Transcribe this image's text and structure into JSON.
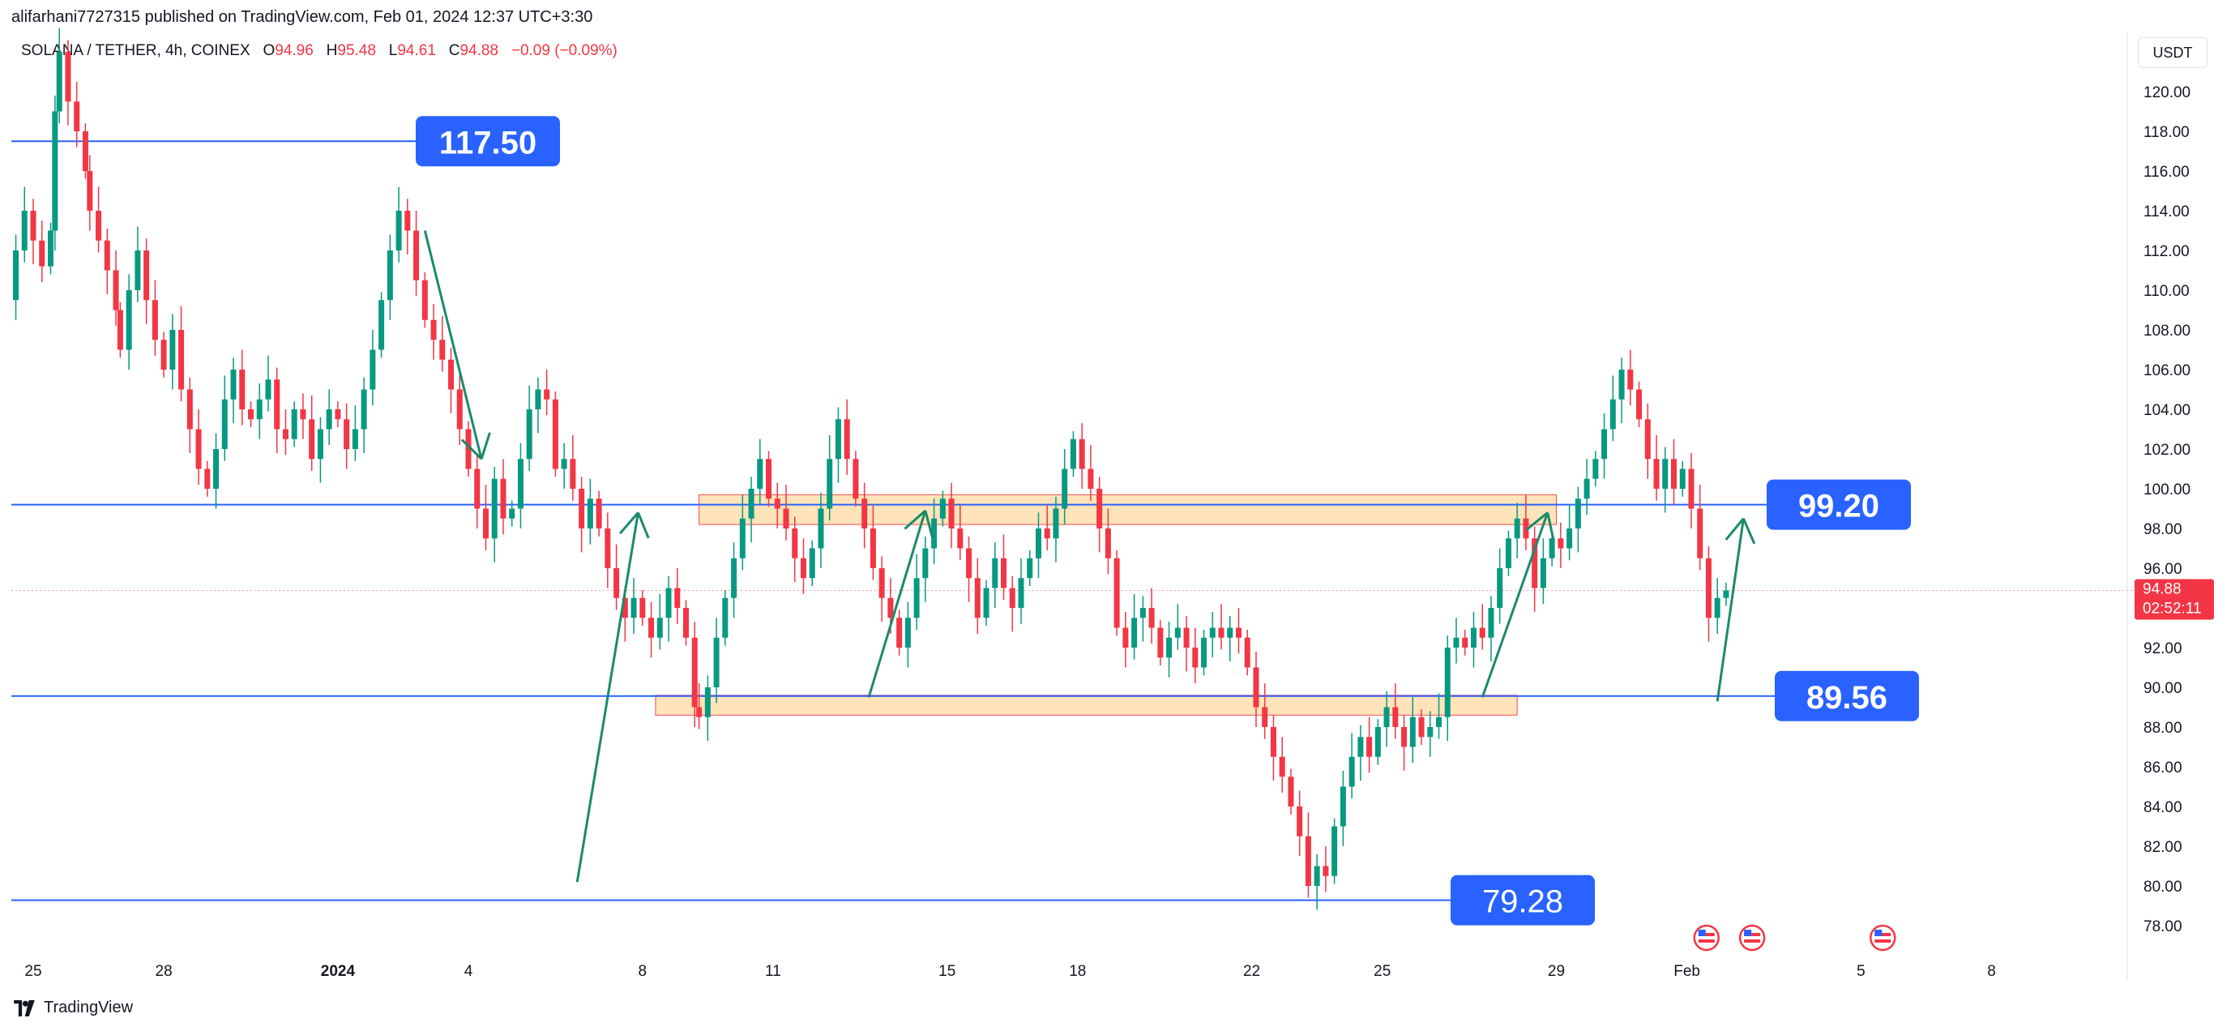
{
  "header": {
    "published": "alifarhani7727315 published on TradingView.com, Feb 01, 2024 12:37 UTC+3:30"
  },
  "symbol": {
    "name": "SOLANA / TETHER, 4h, COINEX",
    "o_label": "O",
    "o_value": "94.96",
    "h_label": "H",
    "h_value": "95.48",
    "l_label": "L",
    "l_value": "94.61",
    "c_label": "C",
    "c_value": "94.88",
    "change": "−0.09 (−0.09%)"
  },
  "currency_label": "USDT",
  "footer": {
    "brand": "TradingView",
    "logo_icon": "tradingview-logo-icon"
  },
  "colors": {
    "up": "#089981",
    "down": "#f23645",
    "level": "#2962ff",
    "zone_fill": "#ffe0b2",
    "zone_border": "#f23645",
    "arrow": "#1b8a6b"
  },
  "chart_data": {
    "type": "candlestick",
    "ylim": [
      77,
      122
    ],
    "y_ticks": [
      "78.00",
      "80.00",
      "82.00",
      "84.00",
      "86.00",
      "88.00",
      "90.00",
      "92.00",
      "94.00",
      "96.00",
      "98.00",
      "100.00",
      "102.00",
      "104.00",
      "106.00",
      "108.00",
      "110.00",
      "112.00",
      "114.00",
      "116.00",
      "118.00",
      "120.00"
    ],
    "x_ticks": [
      {
        "label": "25",
        "day": 0
      },
      {
        "label": "28",
        "day": 3
      },
      {
        "label": "2024",
        "day": 7
      },
      {
        "label": "4",
        "day": 10
      },
      {
        "label": "8",
        "day": 14
      },
      {
        "label": "11",
        "day": 17
      },
      {
        "label": "15",
        "day": 21
      },
      {
        "label": "18",
        "day": 24
      },
      {
        "label": "22",
        "day": 28
      },
      {
        "label": "25",
        "day": 31
      },
      {
        "label": "29",
        "day": 35
      },
      {
        "label": "Feb",
        "day": 38
      },
      {
        "label": "5",
        "day": 42
      },
      {
        "label": "8",
        "day": 45
      }
    ],
    "price_label": {
      "price": "94.88",
      "countdown": "02:52:11",
      "value": 94.88
    },
    "levels": [
      {
        "label": "117.50",
        "value": 117.5
      },
      {
        "label": "99.20",
        "value": 99.2
      },
      {
        "label": "89.56",
        "value": 89.56
      },
      {
        "label": "79.28",
        "value": 79.28
      }
    ],
    "zones": [
      {
        "start_day": 15.3,
        "end_day": 35.0,
        "low": 98.2,
        "high": 99.7
      },
      {
        "start_day": 14.3,
        "end_day": 34.1,
        "low": 88.6,
        "high": 89.6
      }
    ],
    "arrows": [
      {
        "from": [
          9.0,
          113.0
        ],
        "to": [
          10.3,
          101.5
        ]
      },
      {
        "from": [
          12.5,
          80.2
        ],
        "to": [
          13.9,
          98.8
        ]
      },
      {
        "from": [
          19.2,
          89.5
        ],
        "to": [
          20.5,
          98.9
        ]
      },
      {
        "from": [
          33.3,
          89.5
        ],
        "to": [
          34.8,
          98.8
        ]
      },
      {
        "from": [
          38.7,
          89.3
        ],
        "to": [
          39.3,
          98.5
        ]
      }
    ],
    "events": [
      {
        "day": 38.45
      },
      {
        "day": 39.5
      },
      {
        "day": 42.5
      }
    ],
    "close_path": [
      [
        -0.6,
        109.5
      ],
      [
        -0.4,
        112.0
      ],
      [
        -0.2,
        114.0
      ],
      [
        0.0,
        112.5
      ],
      [
        0.2,
        111.2
      ],
      [
        0.4,
        113.0
      ],
      [
        0.5,
        119.0
      ],
      [
        0.6,
        122.0
      ],
      [
        0.8,
        119.5
      ],
      [
        1.0,
        118.0
      ],
      [
        1.2,
        116.0
      ],
      [
        1.3,
        114.0
      ],
      [
        1.5,
        112.5
      ],
      [
        1.7,
        111.0
      ],
      [
        1.9,
        109.0
      ],
      [
        2.0,
        107.0
      ],
      [
        2.2,
        110.0
      ],
      [
        2.4,
        112.0
      ],
      [
        2.6,
        109.5
      ],
      [
        2.8,
        107.5
      ],
      [
        3.0,
        106.0
      ],
      [
        3.2,
        108.0
      ],
      [
        3.4,
        105.0
      ],
      [
        3.6,
        103.0
      ],
      [
        3.8,
        101.0
      ],
      [
        4.0,
        100.0
      ],
      [
        4.2,
        102.0
      ],
      [
        4.4,
        104.5
      ],
      [
        4.6,
        106.0
      ],
      [
        4.8,
        104.0
      ],
      [
        5.0,
        103.5
      ],
      [
        5.2,
        104.5
      ],
      [
        5.4,
        105.5
      ],
      [
        5.6,
        103.0
      ],
      [
        5.8,
        102.5
      ],
      [
        6.0,
        104.0
      ],
      [
        6.2,
        103.5
      ],
      [
        6.4,
        101.5
      ],
      [
        6.6,
        103.0
      ],
      [
        6.8,
        104.0
      ],
      [
        7.0,
        103.5
      ],
      [
        7.2,
        102.0
      ],
      [
        7.4,
        103.0
      ],
      [
        7.6,
        105.0
      ],
      [
        7.8,
        107.0
      ],
      [
        8.0,
        109.5
      ],
      [
        8.2,
        112.0
      ],
      [
        8.4,
        114.0
      ],
      [
        8.6,
        113.0
      ],
      [
        8.8,
        110.5
      ],
      [
        9.0,
        108.5
      ],
      [
        9.2,
        107.5
      ],
      [
        9.4,
        106.5
      ],
      [
        9.6,
        105.0
      ],
      [
        9.8,
        103.0
      ],
      [
        10.0,
        101.0
      ],
      [
        10.2,
        99.0
      ],
      [
        10.4,
        97.5
      ],
      [
        10.6,
        100.5
      ],
      [
        10.8,
        98.5
      ],
      [
        11.0,
        99.0
      ],
      [
        11.2,
        101.5
      ],
      [
        11.4,
        104.0
      ],
      [
        11.6,
        105.0
      ],
      [
        11.8,
        104.5
      ],
      [
        12.0,
        101.0
      ],
      [
        12.2,
        101.5
      ],
      [
        12.4,
        100.0
      ],
      [
        12.6,
        98.0
      ],
      [
        12.8,
        99.5
      ],
      [
        13.0,
        98.0
      ],
      [
        13.2,
        96.0
      ],
      [
        13.4,
        94.5
      ],
      [
        13.6,
        93.5
      ],
      [
        13.8,
        94.5
      ],
      [
        14.0,
        93.5
      ],
      [
        14.2,
        92.5
      ],
      [
        14.4,
        93.5
      ],
      [
        14.6,
        95.0
      ],
      [
        14.8,
        94.0
      ],
      [
        15.0,
        92.5
      ],
      [
        15.2,
        89.0
      ],
      [
        15.3,
        88.5
      ],
      [
        15.5,
        90.0
      ],
      [
        15.7,
        92.5
      ],
      [
        15.9,
        94.5
      ],
      [
        16.1,
        96.5
      ],
      [
        16.3,
        98.5
      ],
      [
        16.5,
        100.0
      ],
      [
        16.7,
        101.5
      ],
      [
        16.9,
        99.5
      ],
      [
        17.1,
        99.0
      ],
      [
        17.3,
        98.0
      ],
      [
        17.5,
        96.5
      ],
      [
        17.7,
        95.5
      ],
      [
        17.9,
        97.0
      ],
      [
        18.1,
        99.0
      ],
      [
        18.3,
        101.5
      ],
      [
        18.5,
        103.5
      ],
      [
        18.7,
        101.5
      ],
      [
        18.9,
        99.5
      ],
      [
        19.1,
        98.0
      ],
      [
        19.3,
        96.0
      ],
      [
        19.5,
        94.5
      ],
      [
        19.7,
        93.5
      ],
      [
        19.9,
        92.0
      ],
      [
        20.1,
        93.5
      ],
      [
        20.3,
        95.5
      ],
      [
        20.5,
        97.0
      ],
      [
        20.7,
        98.5
      ],
      [
        20.9,
        99.5
      ],
      [
        21.1,
        98.0
      ],
      [
        21.3,
        97.0
      ],
      [
        21.5,
        95.5
      ],
      [
        21.7,
        93.5
      ],
      [
        21.9,
        95.0
      ],
      [
        22.1,
        96.5
      ],
      [
        22.3,
        95.0
      ],
      [
        22.5,
        94.0
      ],
      [
        22.7,
        95.5
      ],
      [
        22.9,
        96.5
      ],
      [
        23.1,
        98.0
      ],
      [
        23.3,
        97.5
      ],
      [
        23.5,
        99.0
      ],
      [
        23.7,
        101.0
      ],
      [
        23.9,
        102.5
      ],
      [
        24.1,
        101.0
      ],
      [
        24.3,
        100.0
      ],
      [
        24.5,
        98.0
      ],
      [
        24.7,
        96.5
      ],
      [
        24.9,
        93.0
      ],
      [
        25.1,
        92.0
      ],
      [
        25.3,
        93.5
      ],
      [
        25.5,
        94.0
      ],
      [
        25.7,
        93.0
      ],
      [
        25.9,
        91.5
      ],
      [
        26.1,
        92.5
      ],
      [
        26.3,
        93.0
      ],
      [
        26.5,
        92.0
      ],
      [
        26.7,
        91.0
      ],
      [
        26.9,
        92.5
      ],
      [
        27.1,
        93.0
      ],
      [
        27.3,
        92.5
      ],
      [
        27.5,
        93.0
      ],
      [
        27.7,
        92.5
      ],
      [
        27.9,
        91.0
      ],
      [
        28.1,
        89.0
      ],
      [
        28.3,
        88.0
      ],
      [
        28.5,
        86.5
      ],
      [
        28.7,
        85.5
      ],
      [
        28.9,
        84.0
      ],
      [
        29.1,
        82.5
      ],
      [
        29.3,
        80.0
      ],
      [
        29.5,
        81.0
      ],
      [
        29.7,
        80.5
      ],
      [
        29.9,
        83.0
      ],
      [
        30.1,
        85.0
      ],
      [
        30.3,
        86.5
      ],
      [
        30.5,
        87.5
      ],
      [
        30.7,
        86.5
      ],
      [
        30.9,
        88.0
      ],
      [
        31.1,
        89.0
      ],
      [
        31.3,
        88.0
      ],
      [
        31.5,
        87.0
      ],
      [
        31.7,
        88.5
      ],
      [
        31.9,
        87.5
      ],
      [
        32.1,
        88.0
      ],
      [
        32.3,
        88.5
      ],
      [
        32.5,
        92.0
      ],
      [
        32.7,
        92.5
      ],
      [
        32.9,
        92.0
      ],
      [
        33.1,
        93.0
      ],
      [
        33.3,
        92.5
      ],
      [
        33.5,
        94.0
      ],
      [
        33.7,
        96.0
      ],
      [
        33.9,
        97.5
      ],
      [
        34.1,
        98.5
      ],
      [
        34.3,
        97.5
      ],
      [
        34.5,
        95.0
      ],
      [
        34.7,
        96.5
      ],
      [
        34.9,
        97.5
      ],
      [
        35.1,
        97.0
      ],
      [
        35.3,
        98.0
      ],
      [
        35.5,
        99.5
      ],
      [
        35.7,
        100.5
      ],
      [
        35.9,
        101.5
      ],
      [
        36.1,
        103.0
      ],
      [
        36.3,
        104.5
      ],
      [
        36.5,
        106.0
      ],
      [
        36.7,
        105.0
      ],
      [
        36.9,
        103.5
      ],
      [
        37.1,
        101.5
      ],
      [
        37.3,
        100.0
      ],
      [
        37.5,
        101.5
      ],
      [
        37.7,
        100.0
      ],
      [
        37.9,
        101.0
      ],
      [
        38.1,
        99.0
      ],
      [
        38.3,
        96.5
      ],
      [
        38.5,
        93.5
      ],
      [
        38.7,
        94.5
      ],
      [
        38.9,
        94.88
      ]
    ]
  }
}
